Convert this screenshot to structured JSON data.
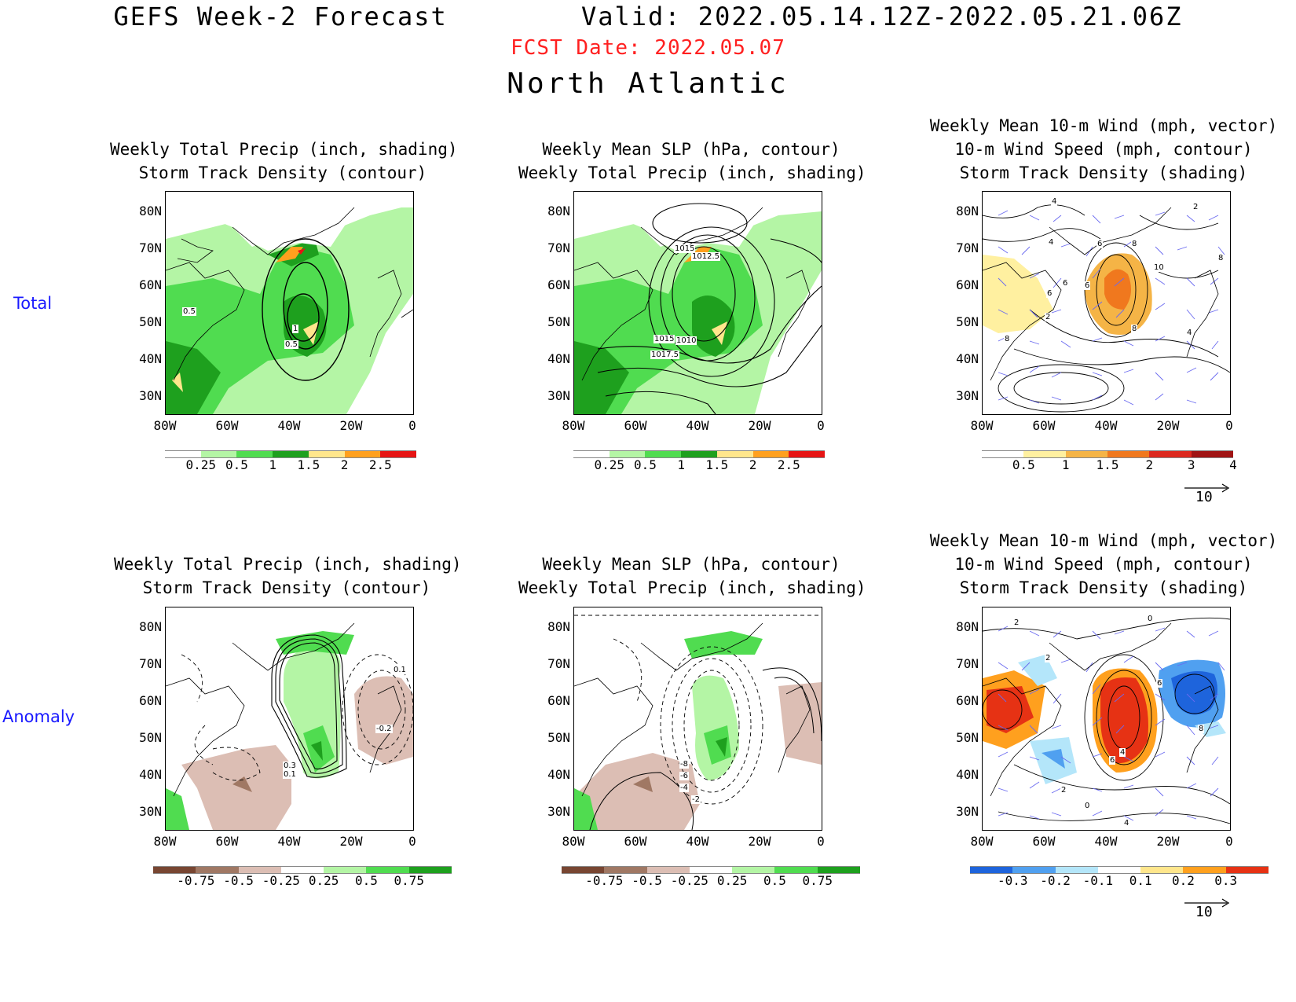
{
  "header": {
    "line1": "GEFS Week-2 Forecast        Valid: 2022.05.14.12Z-2022.05.21.06Z",
    "fcst": "FCST Date: 2022.05.07",
    "region": "North Atlantic"
  },
  "rows": {
    "total": "Total",
    "anomaly": "Anomaly"
  },
  "axes": {
    "lat": [
      "80N",
      "70N",
      "60N",
      "50N",
      "40N",
      "30N"
    ],
    "lon": [
      "80W",
      "60W",
      "40W",
      "20W",
      "0"
    ]
  },
  "panels": {
    "p1": {
      "t1": "Weekly Total Precip (inch, shading)",
      "t2": "Storm Track Density (contour)"
    },
    "p2": {
      "t1": "Weekly Mean SLP (hPa, contour)",
      "t2": "Weekly Total Precip (inch, shading)"
    },
    "p3": {
      "t1": "Weekly Mean 10-m Wind (mph, vector)",
      "t2": "10-m Wind Speed (mph, contour)",
      "t3": "Storm Track Density (shading)"
    },
    "p4": {
      "t1": "Weekly Total Precip (inch, shading)",
      "t2": "Storm Track Density (contour)"
    },
    "p5": {
      "t1": "Weekly Mean SLP (hPa, contour)",
      "t2": "Weekly Total Precip (inch, shading)"
    },
    "p6": {
      "t1": "Weekly Mean 10-m Wind (mph, vector)",
      "t2": "10-m Wind Speed (mph, contour)",
      "t3": "Storm Track Density (shading)"
    }
  },
  "colorbars": {
    "precip_total": {
      "colors": [
        "#ffffff",
        "#b4f5a5",
        "#50dc50",
        "#1ea01e",
        "#ffe68c",
        "#ffa01e",
        "#e61414"
      ],
      "labels": [
        "0.25",
        "0.5",
        "1",
        "1.5",
        "2",
        "2.5"
      ]
    },
    "track_total": {
      "colors": [
        "#ffffff",
        "#fff0a0",
        "#f5b446",
        "#f0781e",
        "#dc281e",
        "#a01414"
      ],
      "labels": [
        "0.5",
        "1",
        "1.5",
        "2",
        "3",
        "4"
      ]
    },
    "precip_anom": {
      "colors": [
        "#784632",
        "#a07864",
        "#dcbeb4",
        "#ffffff",
        "#b4f5a5",
        "#50dc50",
        "#1ea01e"
      ],
      "labels": [
        "-0.75",
        "-0.5",
        "-0.25",
        "0.25",
        "0.5",
        "0.75"
      ]
    },
    "track_anom": {
      "colors": [
        "#1e64dc",
        "#50a0f0",
        "#b4e6fa",
        "#ffffff",
        "#ffe68c",
        "#ffa01e",
        "#e63214"
      ],
      "labels": [
        "-0.3",
        "-0.2",
        "-0.1",
        "0.1",
        "0.2",
        "0.3"
      ]
    }
  },
  "contour_labels": {
    "p1": [
      "0.5",
      "1",
      "0.5"
    ],
    "p2": [
      "1015",
      "1012.5",
      "1015",
      "1010",
      "1017.5"
    ],
    "p3": [
      "4",
      "2",
      "4",
      "6",
      "6",
      "8",
      "10",
      "8",
      "6",
      "6",
      "4",
      "2",
      "8",
      "8"
    ],
    "p4": [
      "0.1",
      "0.3",
      "0.1",
      "-0.2"
    ],
    "p5": [
      "-8",
      "-6",
      "-4",
      "-2"
    ],
    "p6": [
      "2",
      "0",
      "2",
      "6",
      "6",
      "8",
      "4",
      "2",
      "0",
      "4"
    ]
  },
  "reference_vector": "10"
}
